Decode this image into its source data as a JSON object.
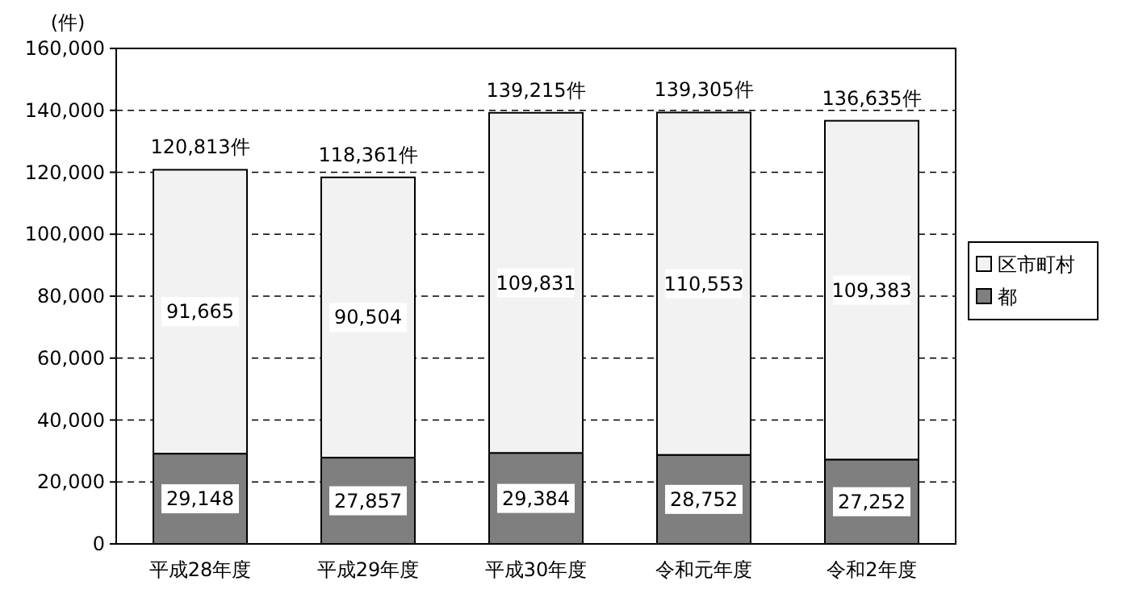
{
  "chart_data": {
    "type": "bar",
    "stacked": true,
    "ylabel": "(件)",
    "categories": [
      "平成28年度",
      "平成29年度",
      "平成30年度",
      "令和元年度",
      "令和2年度"
    ],
    "series": [
      {
        "name": "都",
        "color": "#7f7f7f",
        "values": [
          29148,
          27857,
          29384,
          28752,
          27252
        ],
        "value_labels": [
          "29,148",
          "27,857",
          "29,384",
          "28,752",
          "27,252"
        ]
      },
      {
        "name": "区市町村",
        "color": "#f2f2f2",
        "values": [
          91665,
          90504,
          109831,
          110553,
          109383
        ],
        "value_labels": [
          "91,665",
          "90,504",
          "109,831",
          "110,553",
          "109,383"
        ]
      }
    ],
    "totals": [
      "120,813件",
      "118,361件",
      "139,215件",
      "139,305件",
      "136,635件"
    ],
    "grid": "y",
    "legend": "right",
    "ylim": [
      0,
      160000
    ],
    "yticks": [
      {
        "value": 0,
        "label": "0"
      },
      {
        "value": 20000,
        "label": "20,000"
      },
      {
        "value": 40000,
        "label": "40,000"
      },
      {
        "value": 60000,
        "label": "60,000"
      },
      {
        "value": 80000,
        "label": "80,000"
      },
      {
        "value": 100000,
        "label": "100,000"
      },
      {
        "value": 120000,
        "label": "120,000"
      },
      {
        "value": 140000,
        "label": "140,000"
      },
      {
        "value": 160000,
        "label": "160,000"
      }
    ]
  }
}
